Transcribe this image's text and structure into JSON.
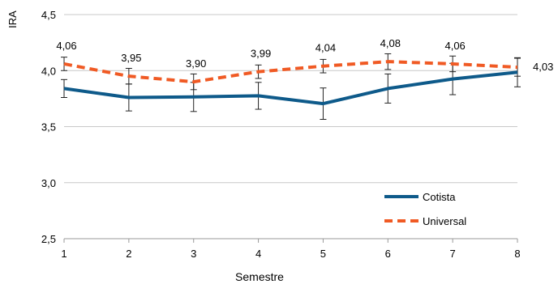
{
  "chart_data": {
    "type": "line",
    "title": "",
    "xlabel": "Semestre",
    "ylabel": "IRA",
    "x": [
      1,
      2,
      3,
      4,
      5,
      6,
      7,
      8
    ],
    "x_tick_labels": [
      "1",
      "2",
      "3",
      "4",
      "5",
      "6",
      "7",
      "8"
    ],
    "xlim": [
      1,
      8
    ],
    "ylim": [
      2.5,
      4.5
    ],
    "y_tick_values": [
      2.5,
      3.0,
      3.5,
      4.0,
      4.5
    ],
    "y_tick_labels": [
      "2,5",
      "3,0",
      "3,5",
      "4,0",
      "4,5"
    ],
    "grid": "horizontal",
    "legend_position": "bottom-right",
    "series": [
      {
        "name": "Cotista",
        "color": "#0e5a8a",
        "dash": "solid",
        "values": [
          3.84,
          3.76,
          3.765,
          3.775,
          3.705,
          3.84,
          3.925,
          3.985
        ],
        "error": [
          0.08,
          0.12,
          0.13,
          0.12,
          0.14,
          0.13,
          0.14,
          0.13
        ],
        "labels": [
          "",
          "",
          "",
          "",
          "",
          "",
          "",
          ""
        ]
      },
      {
        "name": "Universal",
        "color": "#f05a24",
        "dash": "dashed",
        "values": [
          4.06,
          3.95,
          3.9,
          3.99,
          4.04,
          4.08,
          4.06,
          4.03
        ],
        "error": [
          0.06,
          0.07,
          0.07,
          0.06,
          0.06,
          0.07,
          0.07,
          0.08
        ],
        "labels": [
          "4,06",
          "3,95",
          "3,90",
          "3,99",
          "4,04",
          "4,08",
          "4,06",
          "4,03"
        ]
      }
    ]
  }
}
